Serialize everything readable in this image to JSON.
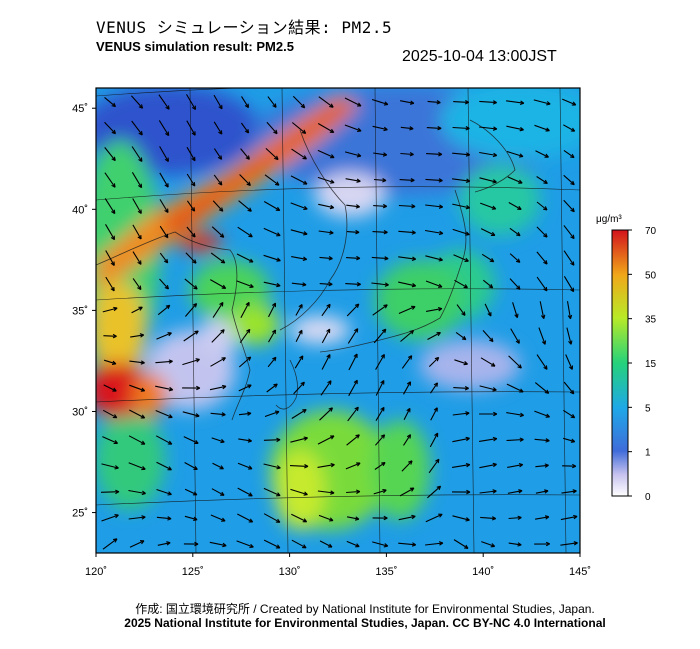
{
  "title_jp": "VENUS シミュレーション結果: PM2.5",
  "title_en": "VENUS simulation result: PM2.5",
  "timestamp": "2025-10-04 13:00JST",
  "credit_jp": "作成: 国立環境研究所 / Created by National Institute for Environmental Studies, Japan.",
  "credit_en": "2025 National Institute for Environmental Studies, Japan. CC BY-NC 4.0 International",
  "map": {
    "lon_range": [
      120,
      145
    ],
    "lat_range": [
      23,
      46
    ],
    "lon_ticks": [
      {
        "value": 120,
        "label": "120˚"
      },
      {
        "value": 125,
        "label": "125˚"
      },
      {
        "value": 130,
        "label": "130˚"
      },
      {
        "value": 135,
        "label": "135˚"
      },
      {
        "value": 140,
        "label": "140˚"
      },
      {
        "value": 145,
        "label": "145˚"
      }
    ],
    "lat_ticks": [
      {
        "value": 45,
        "label": "45˚"
      },
      {
        "value": 40,
        "label": "40˚"
      },
      {
        "value": 35,
        "label": "35˚"
      },
      {
        "value": 30,
        "label": "30˚"
      },
      {
        "value": 25,
        "label": "25˚"
      }
    ]
  },
  "colorbar": {
    "unit": "μg/m³",
    "ticks": [
      "70",
      "50",
      "35",
      "15",
      "5",
      "1",
      "0"
    ]
  }
}
